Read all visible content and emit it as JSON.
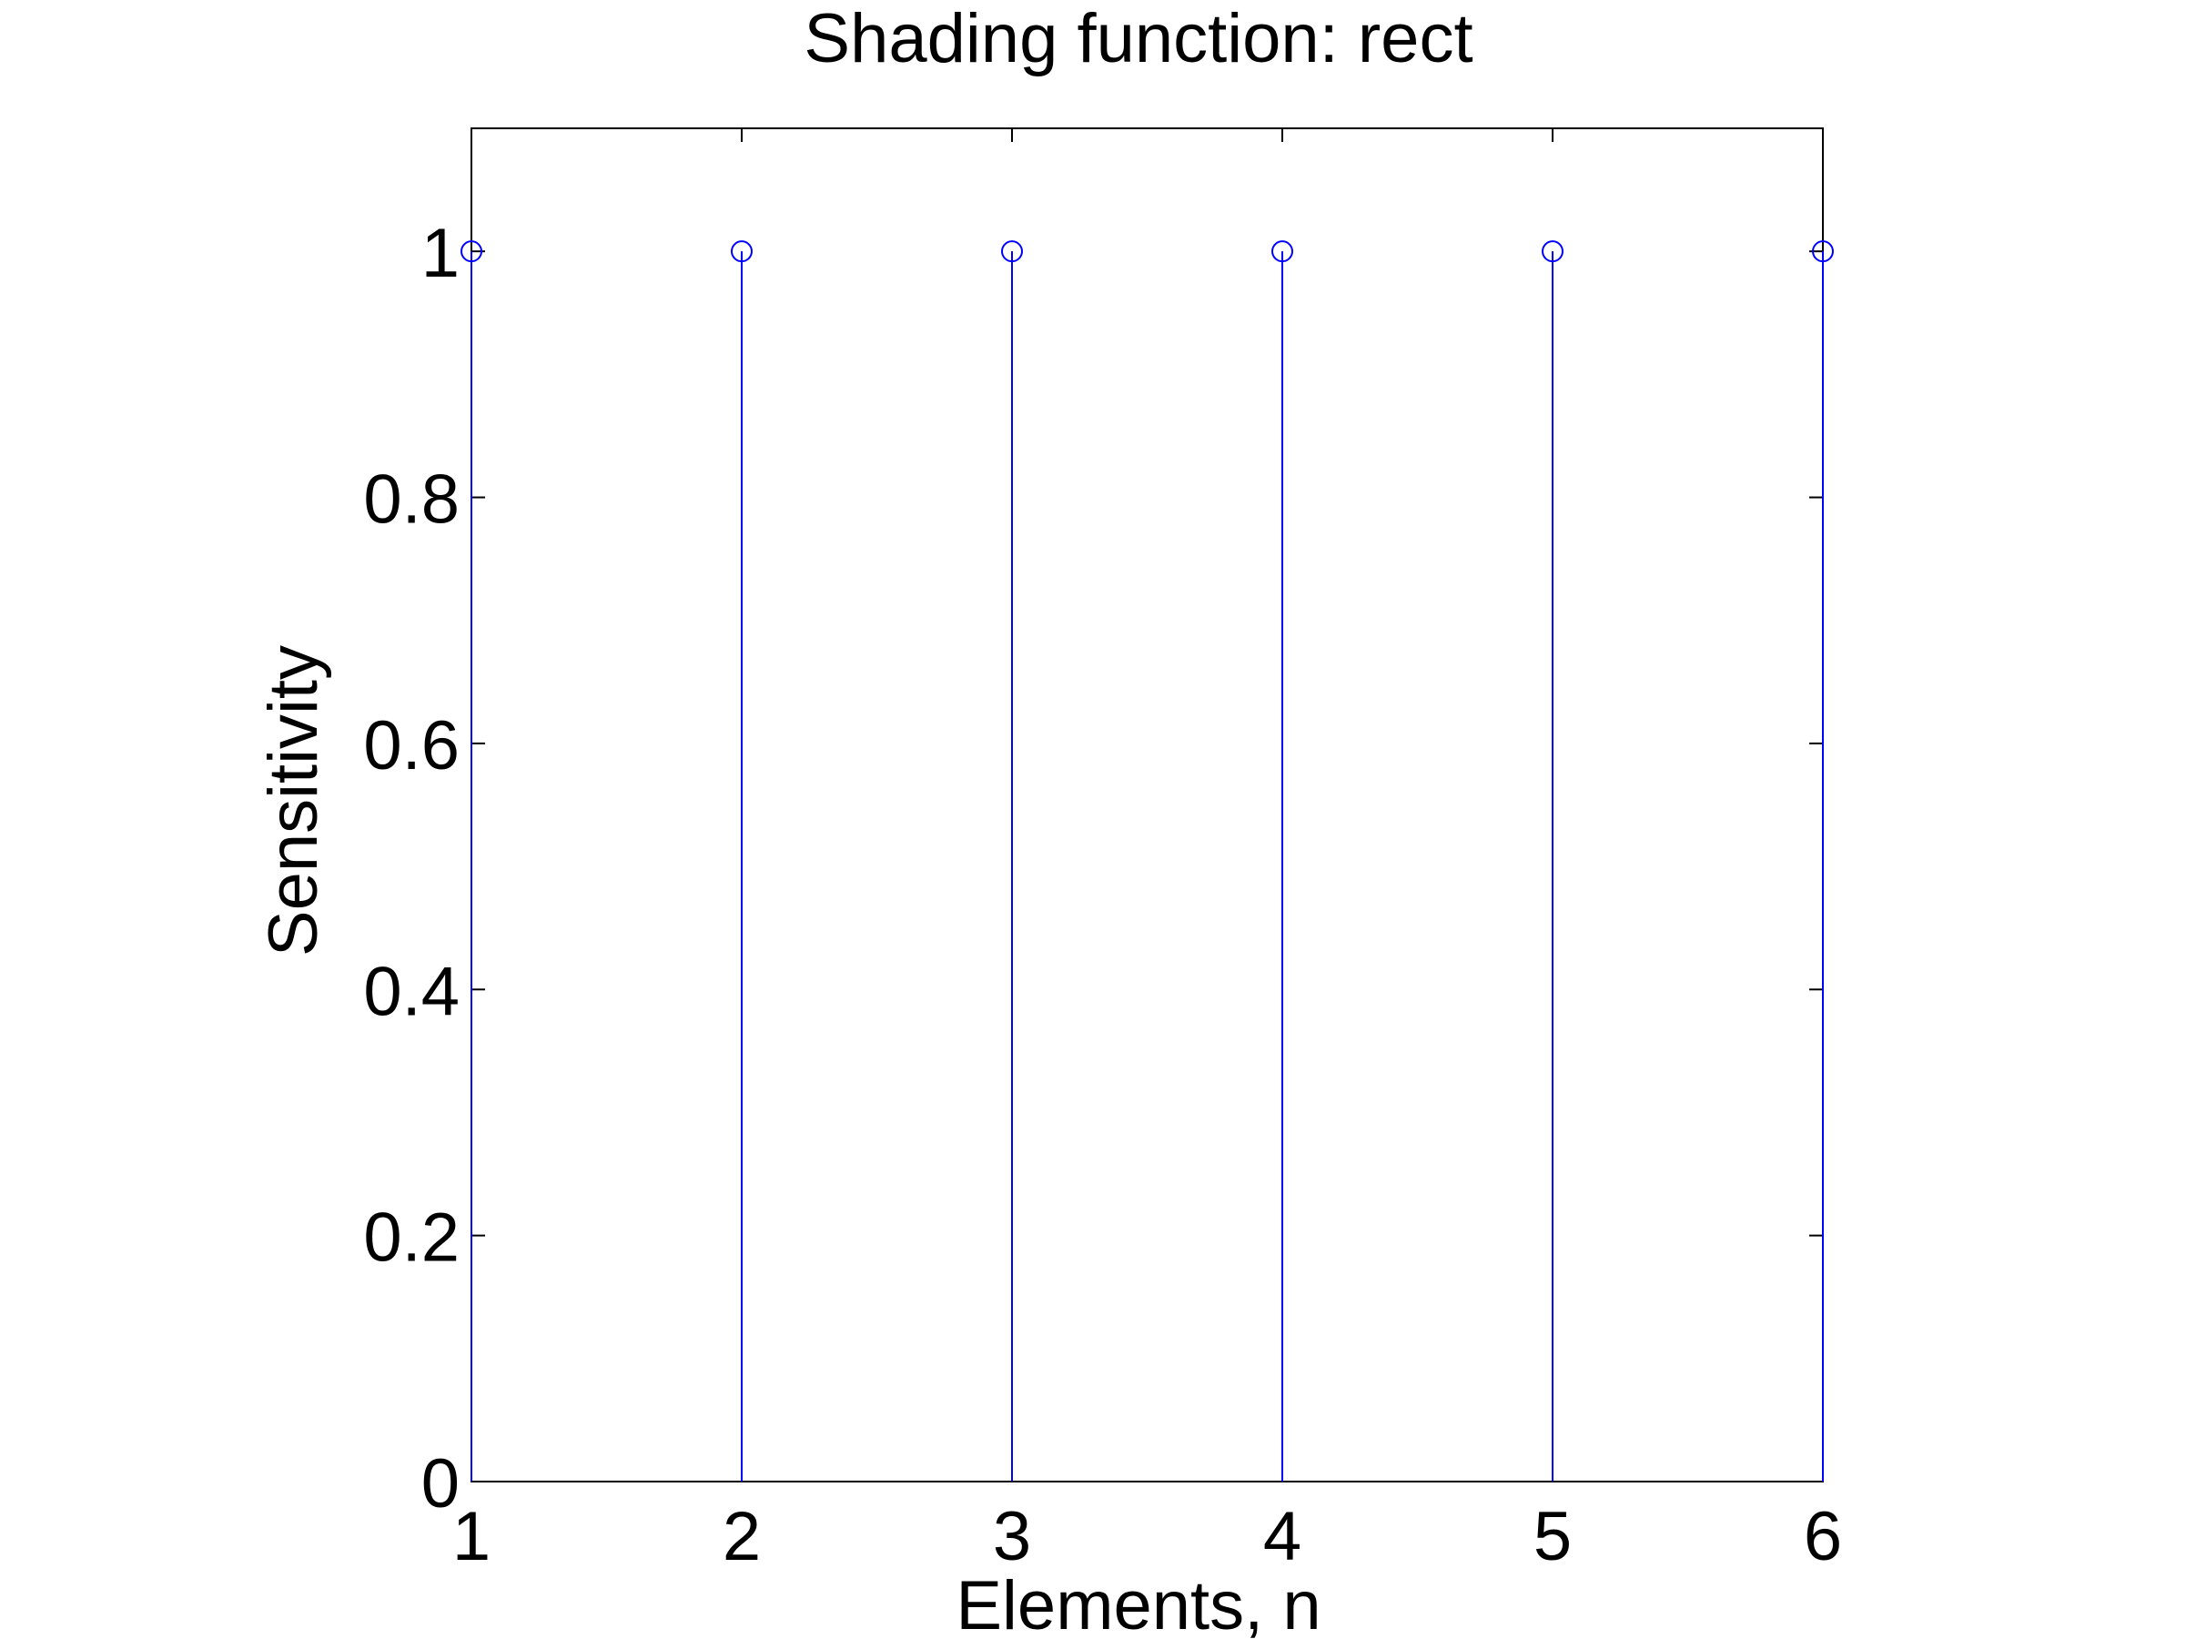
{
  "chart_data": {
    "type": "stem",
    "title": "Shading function: rect",
    "xlabel": "Elements, n",
    "ylabel": "Sensitivity",
    "x": [
      1,
      2,
      3,
      4,
      5,
      6
    ],
    "values": [
      1,
      1,
      1,
      1,
      1,
      1
    ],
    "xlim": [
      1,
      6
    ],
    "ylim": [
      0,
      1.1
    ],
    "xticks": [
      1,
      2,
      3,
      4,
      5,
      6
    ],
    "xtick_labels": [
      "1",
      "2",
      "3",
      "4",
      "5",
      "6"
    ],
    "yticks": [
      0,
      0.2,
      0.4,
      0.6,
      0.8,
      1
    ],
    "ytick_labels": [
      "0",
      "0.2",
      "0.4",
      "0.6",
      "0.8",
      "1"
    ],
    "grid": false,
    "marker": "circle-open",
    "series_color": "#0000ff",
    "axis_color": "#000000"
  }
}
